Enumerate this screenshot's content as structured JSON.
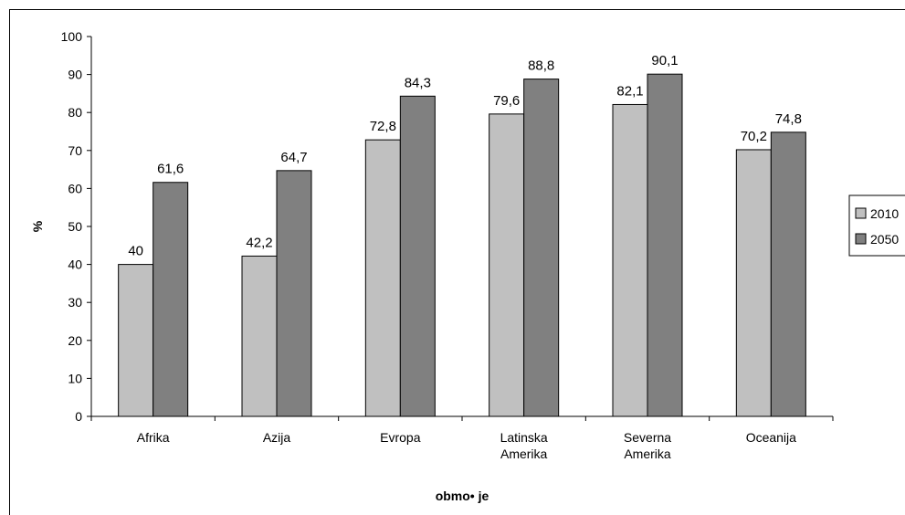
{
  "chart_data": {
    "type": "bar",
    "categories": [
      [
        "Afrika"
      ],
      [
        "Azija"
      ],
      [
        "Evropa"
      ],
      [
        "Latinska",
        "Amerika"
      ],
      [
        "Severna",
        "Amerika"
      ],
      [
        "Oceanija"
      ]
    ],
    "series": [
      {
        "name": "2010",
        "values": [
          40,
          42.2,
          72.8,
          79.6,
          82.1,
          70.2
        ],
        "labels": [
          "40",
          "42,2",
          "72,8",
          "79,6",
          "82,1",
          "70,2"
        ],
        "color": "#c0c0c0"
      },
      {
        "name": "2050",
        "values": [
          61.6,
          64.7,
          84.3,
          88.8,
          90.1,
          74.8
        ],
        "labels": [
          "61,6",
          "64,7",
          "84,3",
          "88,8",
          "90,1",
          "74,8"
        ],
        "color": "#808080"
      }
    ],
    "xlabel": "obmo• je",
    "ylabel": "%",
    "ylim": [
      0,
      100
    ],
    "yticks": [
      0,
      10,
      20,
      30,
      40,
      50,
      60,
      70,
      80,
      90,
      100
    ],
    "ytick_labels": [
      "0",
      "10",
      "20",
      "30",
      "40",
      "50",
      "60",
      "70",
      "80",
      "90",
      "100"
    ],
    "grid": false,
    "legend": "right"
  }
}
